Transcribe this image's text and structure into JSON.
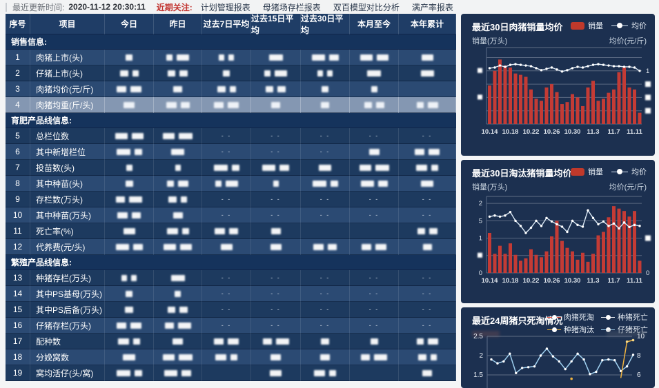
{
  "topbar": {
    "updated_label": "最近更新时间:",
    "updated_time": "2020-11-12 20:30:11",
    "focus_label": "近期关注:",
    "links": [
      "计划管理报表",
      "母猪场存栏报表",
      "双百模型对比分析",
      "满产率报表"
    ]
  },
  "table": {
    "columns": [
      "序号",
      "项目",
      "今日",
      "昨日",
      "过去7日平均",
      "过去15日平均",
      "过去30日平均",
      "本月至今",
      "本年累计"
    ],
    "highlighted_row": "4",
    "sections": [
      {
        "title": "销售信息:",
        "rows": [
          {
            "no": "1",
            "name": "肉猪上市(头)",
            "cells": [
              "b",
              "b",
              "b",
              "b",
              "b",
              "b",
              "b"
            ]
          },
          {
            "no": "2",
            "name": "仔猪上市(头)",
            "cells": [
              "b",
              "b",
              "b",
              "b",
              "b",
              "b",
              "b"
            ]
          },
          {
            "no": "3",
            "name": "肉猪均价(元/斤)",
            "cells": [
              "b",
              "b",
              "b",
              "b",
              "b",
              "b",
              ""
            ]
          },
          {
            "no": "4",
            "name": "肉猪均重(斤/头)",
            "cells": [
              "b",
              "b",
              "b",
              "b",
              "b",
              "b",
              "b"
            ]
          }
        ]
      },
      {
        "title": "育肥产品线信息:",
        "rows": [
          {
            "no": "5",
            "name": "总栏位数",
            "cells": [
              "b",
              "b",
              "--",
              "--",
              "--",
              "--",
              "--"
            ]
          },
          {
            "no": "6",
            "name": "其中新增栏位",
            "cells": [
              "b",
              "b",
              "--",
              "--",
              "--",
              "b",
              "b"
            ]
          },
          {
            "no": "7",
            "name": "投苗数(头)",
            "cells": [
              "b",
              "b",
              "b",
              "b",
              "b",
              "b",
              "b"
            ]
          },
          {
            "no": "8",
            "name": "其中种苗(头)",
            "cells": [
              "b",
              "b",
              "b",
              "b",
              "b",
              "b",
              "b"
            ]
          },
          {
            "no": "9",
            "name": "存栏数(万头)",
            "cells": [
              "b",
              "b",
              "--",
              "--",
              "--",
              "--",
              "--"
            ]
          },
          {
            "no": "10",
            "name": "其中种苗(万头)",
            "cells": [
              "b",
              "b",
              "--",
              "--",
              "--",
              "--",
              "--"
            ]
          },
          {
            "no": "11",
            "name": "死亡率(%)",
            "cells": [
              "b",
              "b",
              "b",
              "b",
              "",
              "",
              "b"
            ]
          },
          {
            "no": "12",
            "name": "代养费(元/头)",
            "cells": [
              "b",
              "b",
              "b",
              "b",
              "b",
              "b",
              "b"
            ]
          }
        ]
      },
      {
        "title": "繁殖产品线信息:",
        "rows": [
          {
            "no": "13",
            "name": "种猪存栏(万头)",
            "cells": [
              "b",
              "b",
              "--",
              "--",
              "--",
              "--",
              "--"
            ]
          },
          {
            "no": "14",
            "name": "其中PS基母(万头)",
            "cells": [
              "b",
              "b",
              "--",
              "--",
              "--",
              "--",
              "--"
            ]
          },
          {
            "no": "15",
            "name": "其中PS后备(万头)",
            "cells": [
              "b",
              "b",
              "--",
              "--",
              "--",
              "--",
              "--"
            ]
          },
          {
            "no": "16",
            "name": "仔猪存栏(万头)",
            "cells": [
              "b",
              "b",
              "--",
              "--",
              "--",
              "--",
              "--"
            ]
          },
          {
            "no": "17",
            "name": "配种数",
            "cells": [
              "b",
              "b",
              "b",
              "b",
              "b",
              "b",
              "b"
            ]
          },
          {
            "no": "18",
            "name": "分娩窝数",
            "cells": [
              "b",
              "b",
              "b",
              "b",
              "b",
              "b",
              "b"
            ]
          },
          {
            "no": "19",
            "name": "窝均活仔(头/窝)",
            "cells": [
              "b",
              "b",
              "",
              "b",
              "b",
              "",
              "b"
            ]
          }
        ]
      }
    ]
  },
  "chart_data": [
    {
      "type": "bar",
      "title": "最近30日肉猪销量均价",
      "legend": [
        "销量",
        "均价"
      ],
      "ylabel_left": "销量(万头)",
      "ylabel_right": "均价(元/斤)",
      "x_tick_labels": [
        "10.14",
        "10.18",
        "10.22",
        "10.26",
        "10.30",
        "11.3",
        "11.7",
        "11.11"
      ],
      "axis_values_redacted": true,
      "right_axis_visible_tick": "1",
      "ylim": [
        0,
        1.15
      ],
      "series": [
        {
          "name": "销量",
          "type": "bar",
          "color": "#c43b35",
          "values": [
            0.58,
            0.8,
            0.97,
            0.88,
            0.85,
            0.76,
            0.74,
            0.71,
            0.52,
            0.38,
            0.35,
            0.55,
            0.6,
            0.48,
            0.3,
            0.33,
            0.45,
            0.4,
            0.27,
            0.55,
            0.65,
            0.35,
            0.38,
            0.47,
            0.52,
            0.78,
            0.85,
            0.55,
            0.52,
            0.17
          ]
        },
        {
          "name": "均价",
          "type": "line",
          "color": "#dbe9f6",
          "values": [
            0.84,
            0.85,
            0.88,
            0.86,
            0.89,
            0.9,
            0.89,
            0.88,
            0.87,
            0.84,
            0.81,
            0.83,
            0.85,
            0.82,
            0.79,
            0.81,
            0.84,
            0.86,
            0.85,
            0.87,
            0.89,
            0.9,
            0.89,
            0.88,
            0.87,
            0.87,
            0.86,
            0.86,
            0.85,
            0.8
          ]
        }
      ]
    },
    {
      "type": "bar",
      "title": "最近30日淘汰猪销量均价",
      "legend": [
        "销量",
        "均价"
      ],
      "ylabel_left": "销量(万头)",
      "ylabel_right": "均价(元/斤)",
      "x_tick_labels": [
        "10.14",
        "10.18",
        "10.22",
        "10.26",
        "10.30",
        "11.3",
        "11.7",
        "11.11"
      ],
      "left_axis_visible_ticks": [
        "2",
        "5",
        "1",
        "0"
      ],
      "right_axis_visible_ticks": [
        "0"
      ],
      "ylim": [
        0,
        2.2
      ],
      "series": [
        {
          "name": "销量",
          "type": "bar",
          "color": "#c43b35",
          "values": [
            1.15,
            0.55,
            0.78,
            0.55,
            0.85,
            0.52,
            0.35,
            0.42,
            0.68,
            0.52,
            0.45,
            0.62,
            1.05,
            1.5,
            0.92,
            0.72,
            0.62,
            0.38,
            0.58,
            0.32,
            0.55,
            1.08,
            1.18,
            1.6,
            1.92,
            1.85,
            1.78,
            1.62,
            1.78,
            0.35
          ]
        },
        {
          "name": "均价",
          "type": "line",
          "color": "#dbe9f6",
          "values": [
            1.62,
            1.65,
            1.62,
            1.65,
            1.75,
            1.5,
            1.35,
            1.15,
            1.3,
            1.5,
            1.35,
            1.58,
            1.48,
            1.4,
            1.33,
            1.18,
            1.5,
            1.38,
            1.33,
            1.8,
            1.58,
            1.4,
            1.48,
            1.35,
            1.42,
            1.28,
            1.45,
            1.32,
            1.38,
            1.35
          ]
        }
      ]
    },
    {
      "type": "line",
      "title": "最近24周猪只死淘情况",
      "legend": [
        "肉猪死淘",
        "种猪死亡",
        "种猪淘汰",
        "仔猪死亡"
      ],
      "legend_colors": [
        "#e0493a",
        "#f2f5f8",
        "#f0b440",
        "#9fd0f0"
      ],
      "axis_labels_redacted": true,
      "left_ticks": [
        "2.5",
        "2",
        "1.5"
      ],
      "right_ticks": [
        "10",
        "8",
        "6"
      ],
      "ylim_left_visible": [
        1.5,
        2.5
      ],
      "ylim_right_visible": [
        6,
        10
      ],
      "series": [
        {
          "name": "仔猪死亡",
          "color": "#9fd0f0",
          "values": [
            1.9,
            1.8,
            1.85,
            2.05,
            1.55,
            1.68,
            1.7,
            1.72,
            2.0,
            2.18,
            1.98,
            1.85,
            1.65,
            1.85,
            2.05,
            1.9,
            1.52,
            1.58,
            1.88,
            1.9,
            1.88,
            1.6,
            1.72,
            2.02
          ]
        },
        {
          "name": "种猪淘汰",
          "color": "#f0b440",
          "points": [
            [
              21,
              1.42
            ],
            [
              22,
              2.36
            ],
            [
              23,
              2.4
            ]
          ],
          "stray_point": [
            13,
            1.4
          ]
        }
      ]
    }
  ],
  "colors": {
    "panel_bg": "#1c3050",
    "bar_red": "#c43b35",
    "line_white": "#dbe9f6",
    "pig_blue": "#9fd0f0",
    "cull_yellow": "#f0b440",
    "grid": "#97a1b2",
    "highlight_row": "#8497b2",
    "focus_red": "#c23531"
  }
}
